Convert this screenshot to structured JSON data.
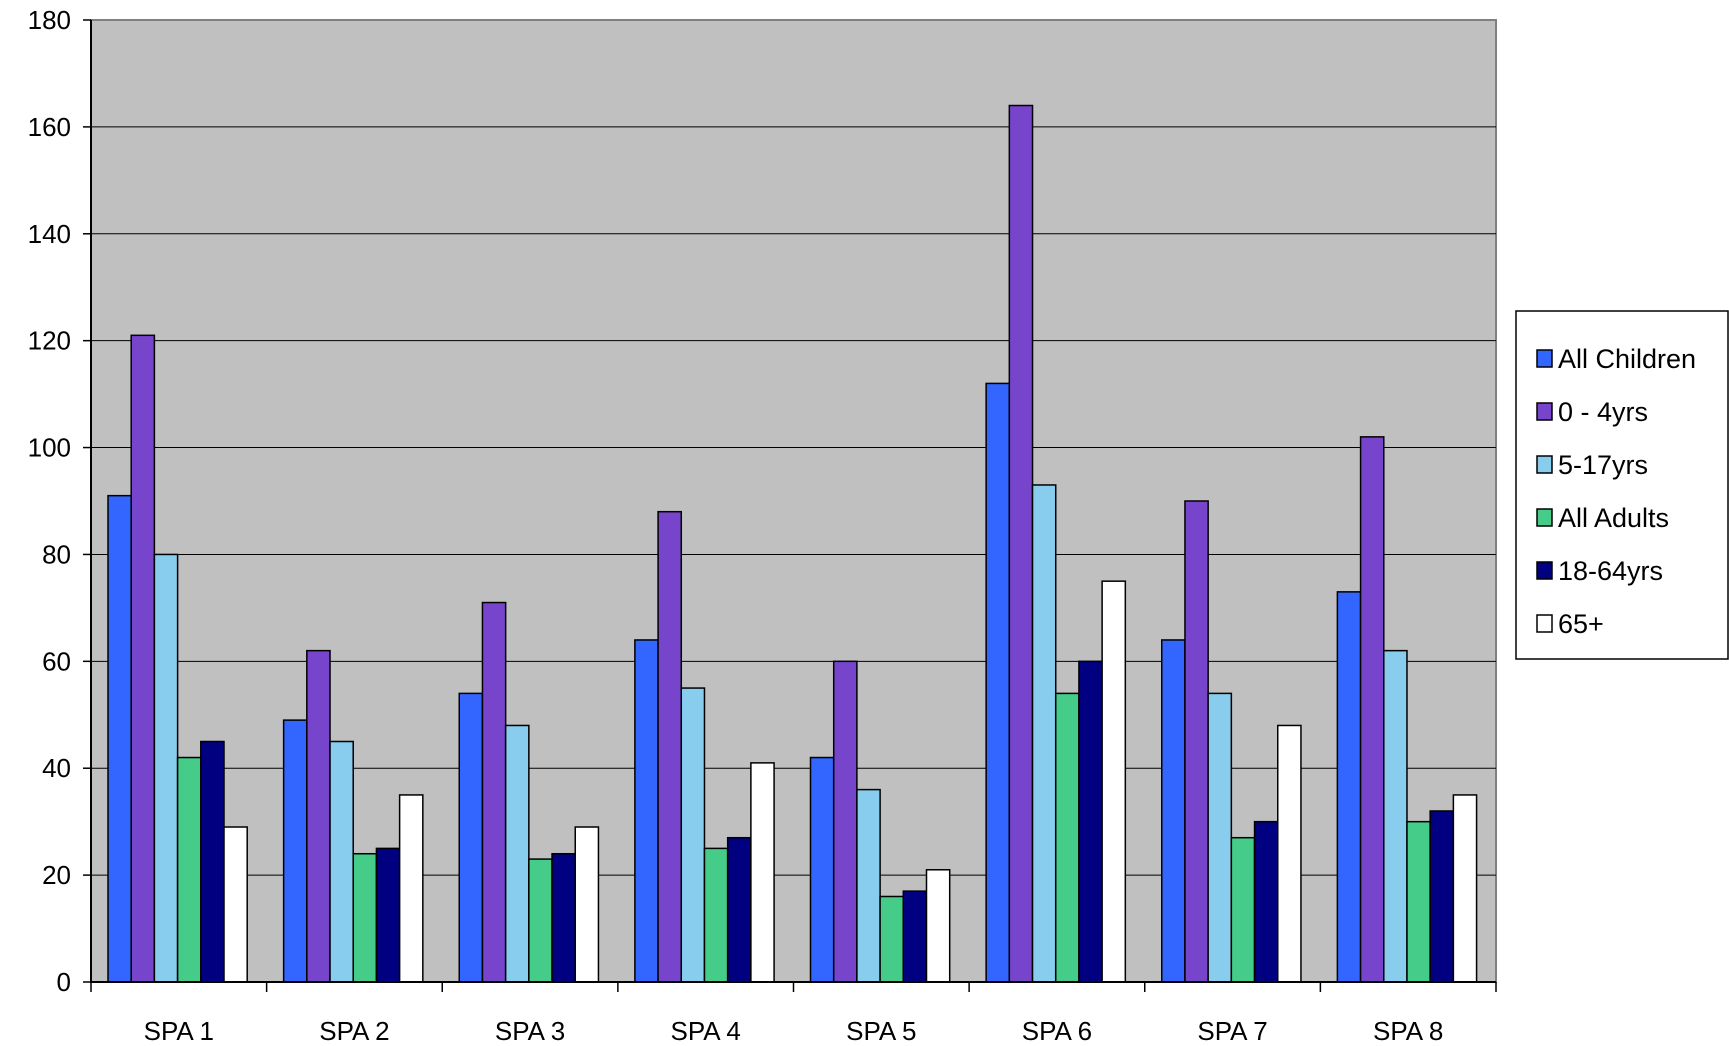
{
  "chart_data": {
    "type": "bar",
    "categories": [
      "SPA 1",
      "SPA 2",
      "SPA 3",
      "SPA 4",
      "SPA 5",
      "SPA 6",
      "SPA 7",
      "SPA 8"
    ],
    "series": [
      {
        "name": "All Children",
        "color": "#3366ff",
        "values": [
          91,
          49,
          54,
          64,
          42,
          112,
          64,
          73
        ]
      },
      {
        "name": "0 - 4yrs",
        "color": "#7744cc",
        "values": [
          121,
          62,
          71,
          88,
          60,
          164,
          90,
          102
        ]
      },
      {
        "name": "5-17yrs",
        "color": "#88ccee",
        "values": [
          80,
          45,
          48,
          55,
          36,
          93,
          54,
          62
        ]
      },
      {
        "name": "All Adults",
        "color": "#44cc88",
        "values": [
          42,
          24,
          23,
          25,
          16,
          54,
          27,
          30
        ]
      },
      {
        "name": "18-64yrs",
        "color": "#000080",
        "values": [
          45,
          25,
          24,
          27,
          17,
          60,
          30,
          32
        ]
      },
      {
        "name": "65+",
        "color": "#ffffff",
        "values": [
          29,
          35,
          29,
          41,
          21,
          75,
          48,
          35
        ]
      }
    ],
    "yticks": [
      0,
      20,
      40,
      60,
      80,
      100,
      120,
      140,
      160,
      180
    ],
    "ylim": [
      0,
      180
    ],
    "title": "",
    "xlabel": "",
    "ylabel": "",
    "grid": true,
    "plot_background": "#c0c0c0",
    "legend_position": "right"
  }
}
